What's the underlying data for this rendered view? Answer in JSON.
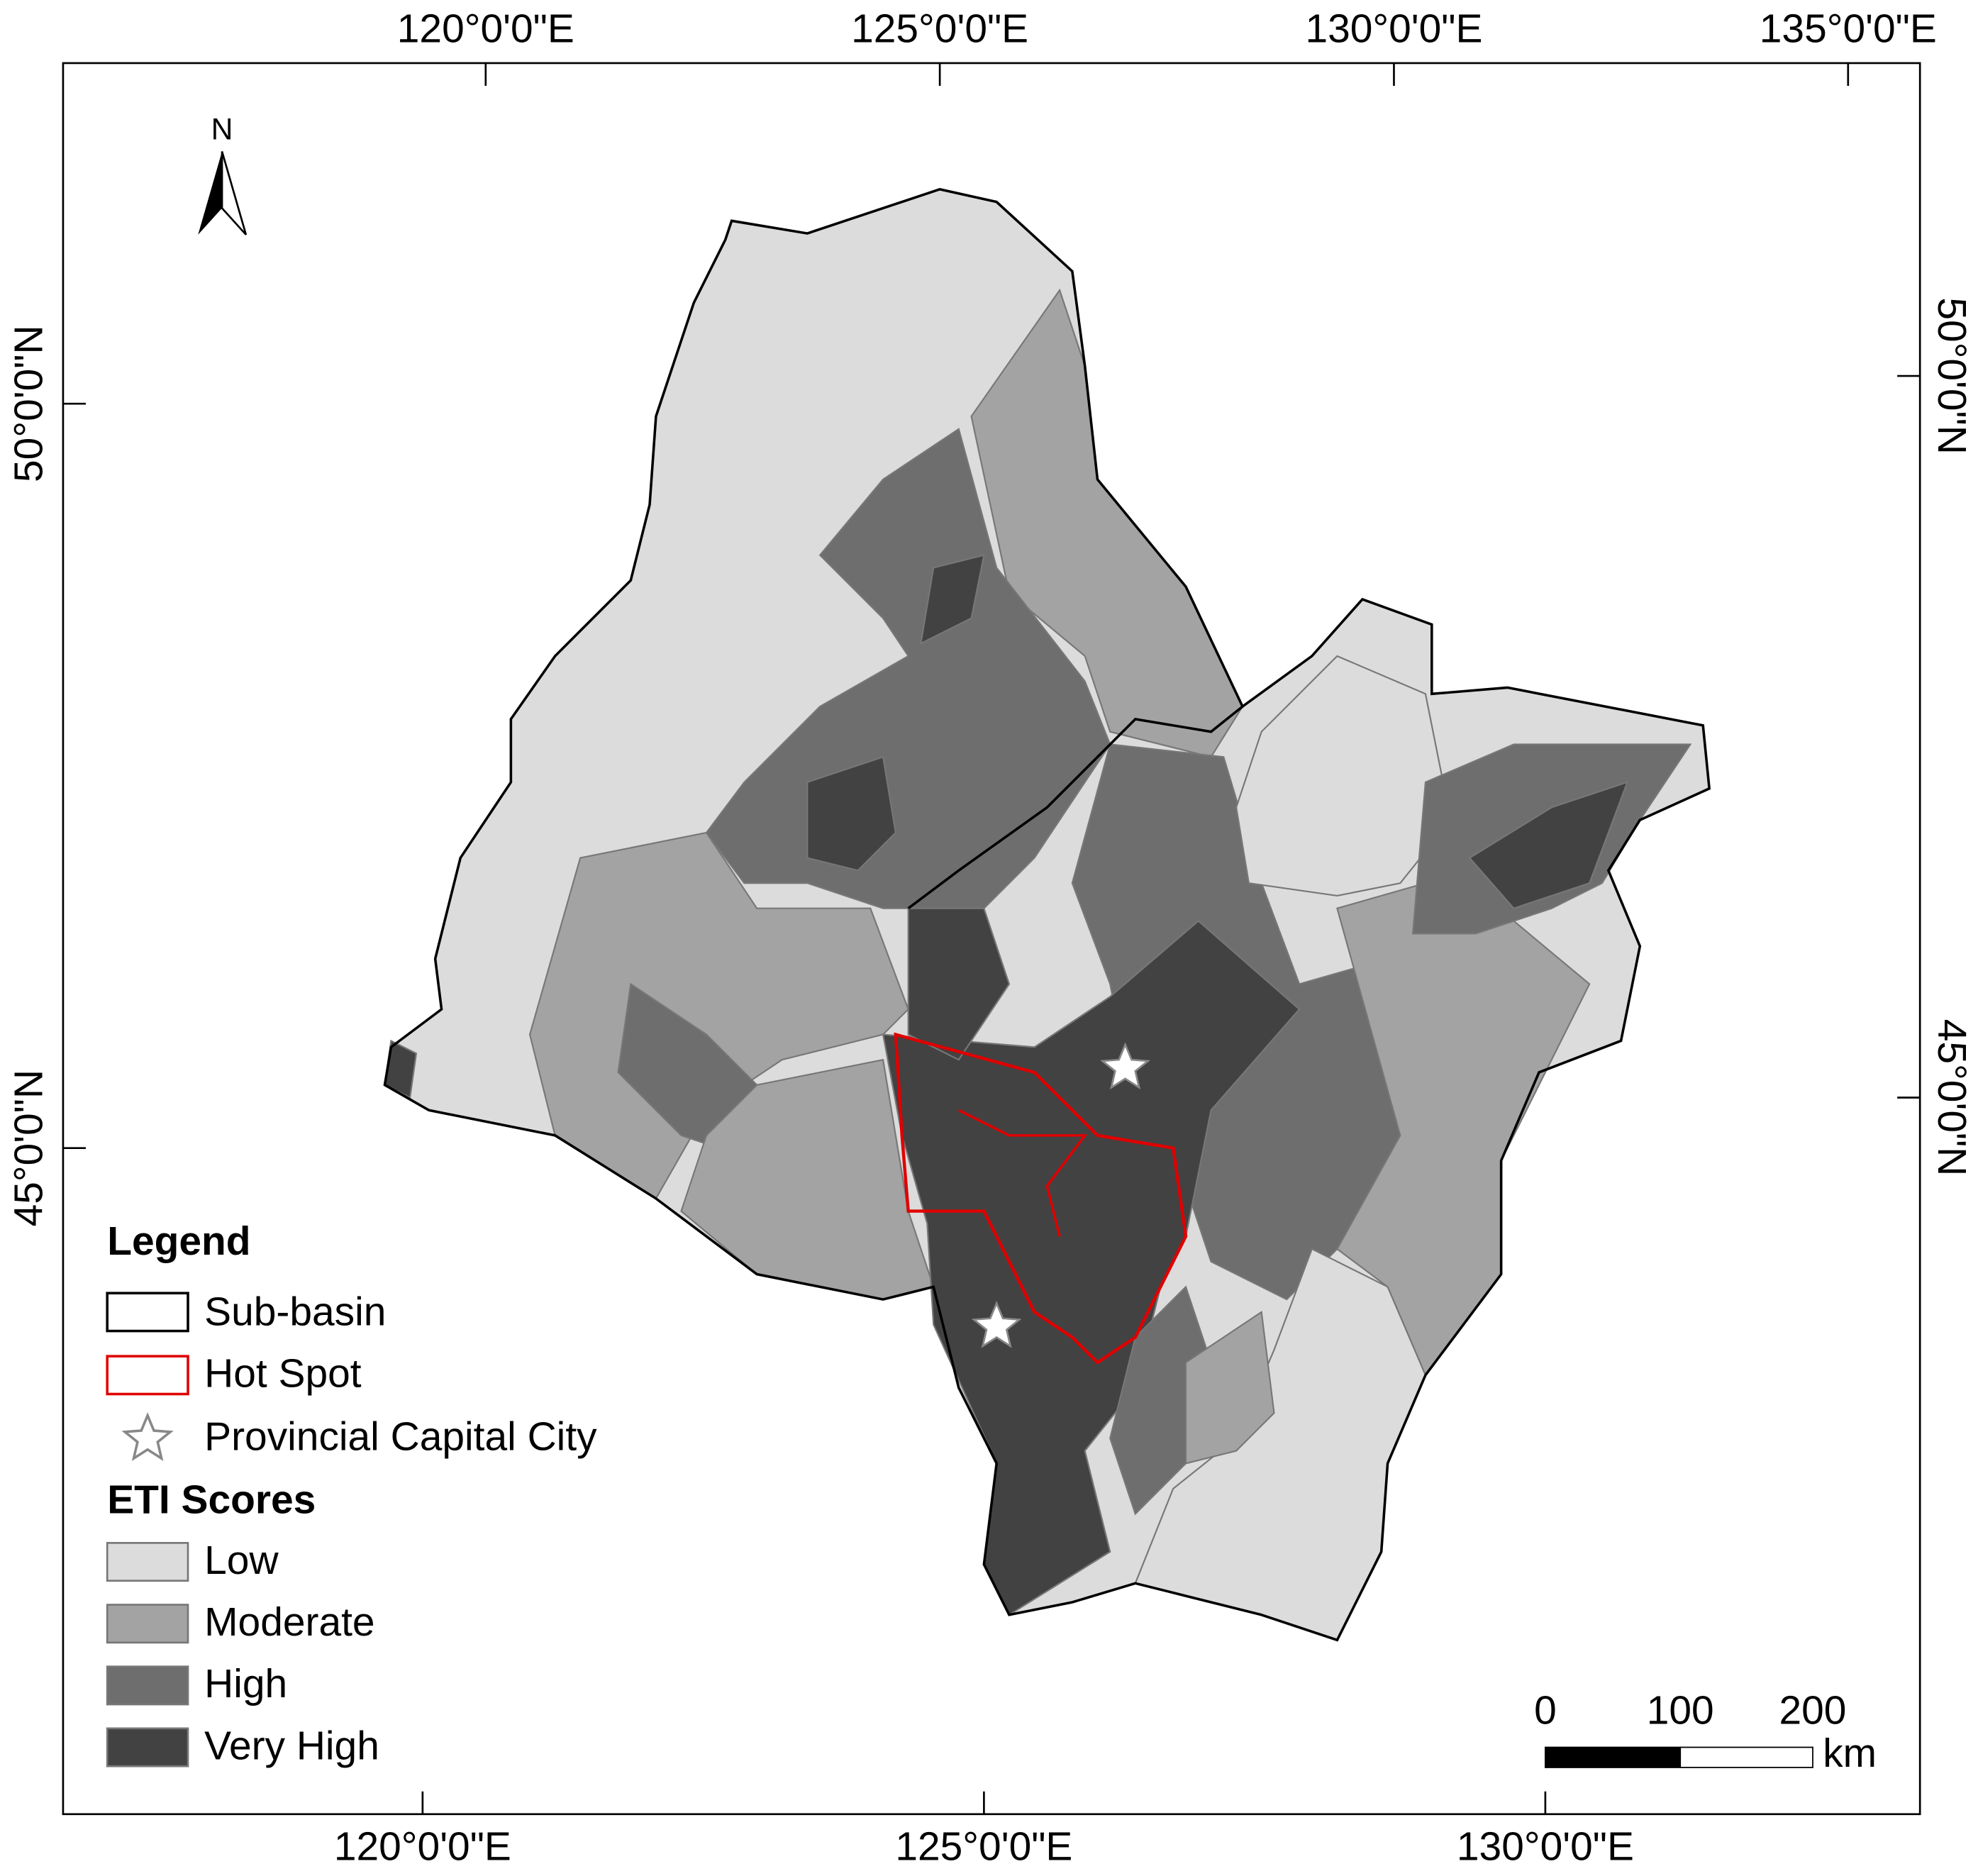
{
  "north_arrow": {
    "label": "N"
  },
  "graticule": {
    "top": [
      "120°0'0\"E",
      "125°0'0\"E",
      "130°0'0\"E",
      "135°0'0\"E"
    ],
    "bottom": [
      "120°0'0\"E",
      "125°0'0\"E",
      "130°0'0\"E"
    ],
    "left": [
      "50°0'0\"N",
      "45°0'0\"N"
    ],
    "right": [
      "50°0'0\"N",
      "45°0'0\"N"
    ]
  },
  "legend": {
    "title": "Legend",
    "items": [
      {
        "label": "Sub-basin",
        "color": "#000000"
      },
      {
        "label": "Hot Spot",
        "color": "#e00000"
      },
      {
        "label": "Provincial Capital City",
        "color": "#808080"
      }
    ],
    "eti_title": "ETI Scores",
    "eti_items": [
      {
        "label": "Low",
        "color": "#dcdcdc"
      },
      {
        "label": "Moderate",
        "color": "#a3a3a3"
      },
      {
        "label": "High",
        "color": "#6e6e6e"
      },
      {
        "label": "Very High",
        "color": "#424242"
      }
    ]
  },
  "scale_bar": {
    "labels": [
      "0",
      "100",
      "200"
    ],
    "unit": "km"
  }
}
